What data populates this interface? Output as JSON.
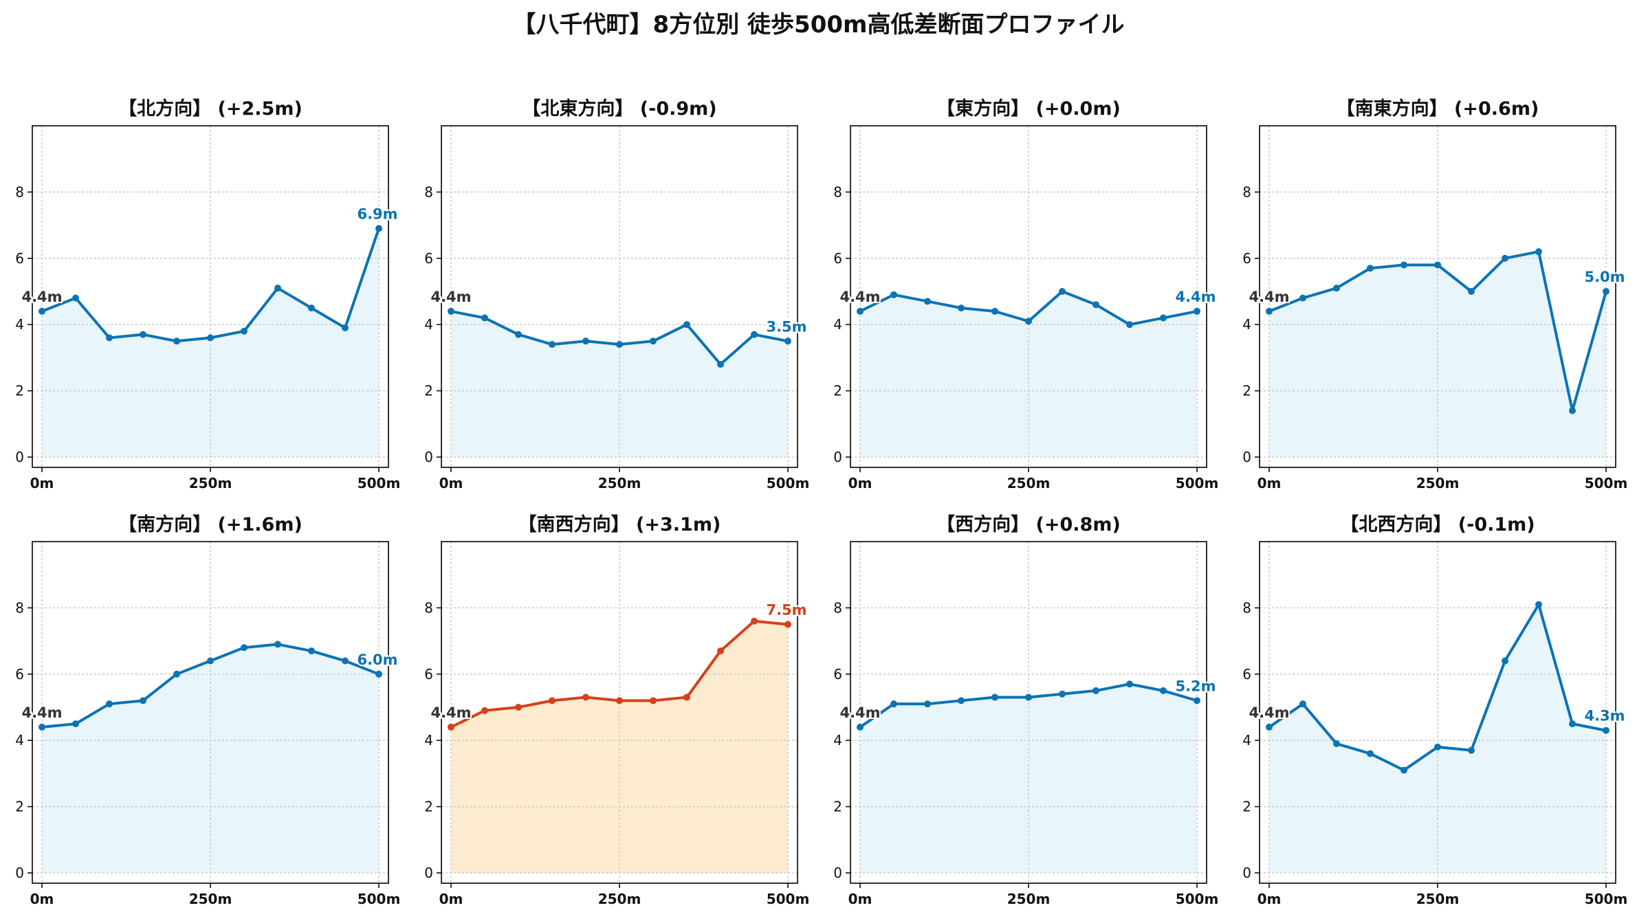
{
  "title": "【八千代町】8方位別 徒歩500m高低差断面プロファイル",
  "colors": {
    "normal_line": "#0c73b4",
    "normal_fill": "#e8f6fc",
    "highlight_line": "#d6411a",
    "highlight_fill": "#fdebcf",
    "start_label": "#333333",
    "grid": "#c8c8c8"
  },
  "chart_data": [
    {
      "type": "area",
      "title": "【北方向】 (+2.5m)",
      "x": [
        0,
        50,
        100,
        150,
        200,
        250,
        300,
        350,
        400,
        450,
        500
      ],
      "values": [
        4.4,
        4.8,
        3.6,
        3.7,
        3.5,
        3.6,
        3.8,
        5.1,
        4.5,
        3.9,
        6.9
      ],
      "start_label": "4.4m",
      "end_label": "6.9m",
      "highlight": false,
      "xticks": [
        "0m",
        "250m",
        "500m"
      ],
      "yticks": [
        "0",
        "2",
        "4",
        "6",
        "8"
      ],
      "ylim": [
        0,
        10
      ],
      "grid": true
    },
    {
      "type": "area",
      "title": "【北東方向】 (-0.9m)",
      "x": [
        0,
        50,
        100,
        150,
        200,
        250,
        300,
        350,
        400,
        450,
        500
      ],
      "values": [
        4.4,
        4.2,
        3.7,
        3.4,
        3.5,
        3.4,
        3.5,
        4.0,
        2.8,
        3.7,
        3.5
      ],
      "start_label": "4.4m",
      "end_label": "3.5m",
      "highlight": false,
      "xticks": [
        "0m",
        "250m",
        "500m"
      ],
      "yticks": [
        "0",
        "2",
        "4",
        "6",
        "8"
      ],
      "ylim": [
        0,
        10
      ],
      "grid": true
    },
    {
      "type": "area",
      "title": "【東方向】 (+0.0m)",
      "x": [
        0,
        50,
        100,
        150,
        200,
        250,
        300,
        350,
        400,
        450,
        500
      ],
      "values": [
        4.4,
        4.9,
        4.7,
        4.5,
        4.4,
        4.1,
        5.0,
        4.6,
        4.0,
        4.2,
        4.4
      ],
      "start_label": "4.4m",
      "end_label": "4.4m",
      "highlight": false,
      "xticks": [
        "0m",
        "250m",
        "500m"
      ],
      "yticks": [
        "0",
        "2",
        "4",
        "6",
        "8"
      ],
      "ylim": [
        0,
        10
      ],
      "grid": true
    },
    {
      "type": "area",
      "title": "【南東方向】 (+0.6m)",
      "x": [
        0,
        50,
        100,
        150,
        200,
        250,
        300,
        350,
        400,
        450,
        500
      ],
      "values": [
        4.4,
        4.8,
        5.1,
        5.7,
        5.8,
        5.8,
        5.0,
        6.0,
        6.2,
        1.4,
        5.0
      ],
      "start_label": "4.4m",
      "end_label": "5.0m",
      "highlight": false,
      "xticks": [
        "0m",
        "250m",
        "500m"
      ],
      "yticks": [
        "0",
        "2",
        "4",
        "6",
        "8"
      ],
      "ylim": [
        0,
        10
      ],
      "grid": true
    },
    {
      "type": "area",
      "title": "【南方向】 (+1.6m)",
      "x": [
        0,
        50,
        100,
        150,
        200,
        250,
        300,
        350,
        400,
        450,
        500
      ],
      "values": [
        4.4,
        4.5,
        5.1,
        5.2,
        6.0,
        6.4,
        6.8,
        6.9,
        6.7,
        6.4,
        6.0
      ],
      "start_label": "4.4m",
      "end_label": "6.0m",
      "highlight": false,
      "xticks": [
        "0m",
        "250m",
        "500m"
      ],
      "yticks": [
        "0",
        "2",
        "4",
        "6",
        "8"
      ],
      "ylim": [
        0,
        10
      ],
      "grid": true
    },
    {
      "type": "area",
      "title": "【南西方向】 (+3.1m)",
      "x": [
        0,
        50,
        100,
        150,
        200,
        250,
        300,
        350,
        400,
        450,
        500
      ],
      "values": [
        4.4,
        4.9,
        5.0,
        5.2,
        5.3,
        5.2,
        5.2,
        5.3,
        6.7,
        7.6,
        7.5
      ],
      "start_label": "4.4m",
      "end_label": "7.5m",
      "highlight": true,
      "xticks": [
        "0m",
        "250m",
        "500m"
      ],
      "yticks": [
        "0",
        "2",
        "4",
        "6",
        "8"
      ],
      "ylim": [
        0,
        10
      ],
      "grid": true
    },
    {
      "type": "area",
      "title": "【西方向】 (+0.8m)",
      "x": [
        0,
        50,
        100,
        150,
        200,
        250,
        300,
        350,
        400,
        450,
        500
      ],
      "values": [
        4.4,
        5.1,
        5.1,
        5.2,
        5.3,
        5.3,
        5.4,
        5.5,
        5.7,
        5.5,
        5.2
      ],
      "start_label": "4.4m",
      "end_label": "5.2m",
      "highlight": false,
      "xticks": [
        "0m",
        "250m",
        "500m"
      ],
      "yticks": [
        "0",
        "2",
        "4",
        "6",
        "8"
      ],
      "ylim": [
        0,
        10
      ],
      "grid": true
    },
    {
      "type": "area",
      "title": "【北西方向】 (-0.1m)",
      "x": [
        0,
        50,
        100,
        150,
        200,
        250,
        300,
        350,
        400,
        450,
        500
      ],
      "values": [
        4.4,
        5.1,
        3.9,
        3.6,
        3.1,
        3.8,
        3.7,
        6.4,
        8.1,
        4.5,
        4.3
      ],
      "start_label": "4.4m",
      "end_label": "4.3m",
      "highlight": false,
      "xticks": [
        "0m",
        "250m",
        "500m"
      ],
      "yticks": [
        "0",
        "2",
        "4",
        "6",
        "8"
      ],
      "ylim": [
        0,
        10
      ],
      "grid": true
    }
  ]
}
